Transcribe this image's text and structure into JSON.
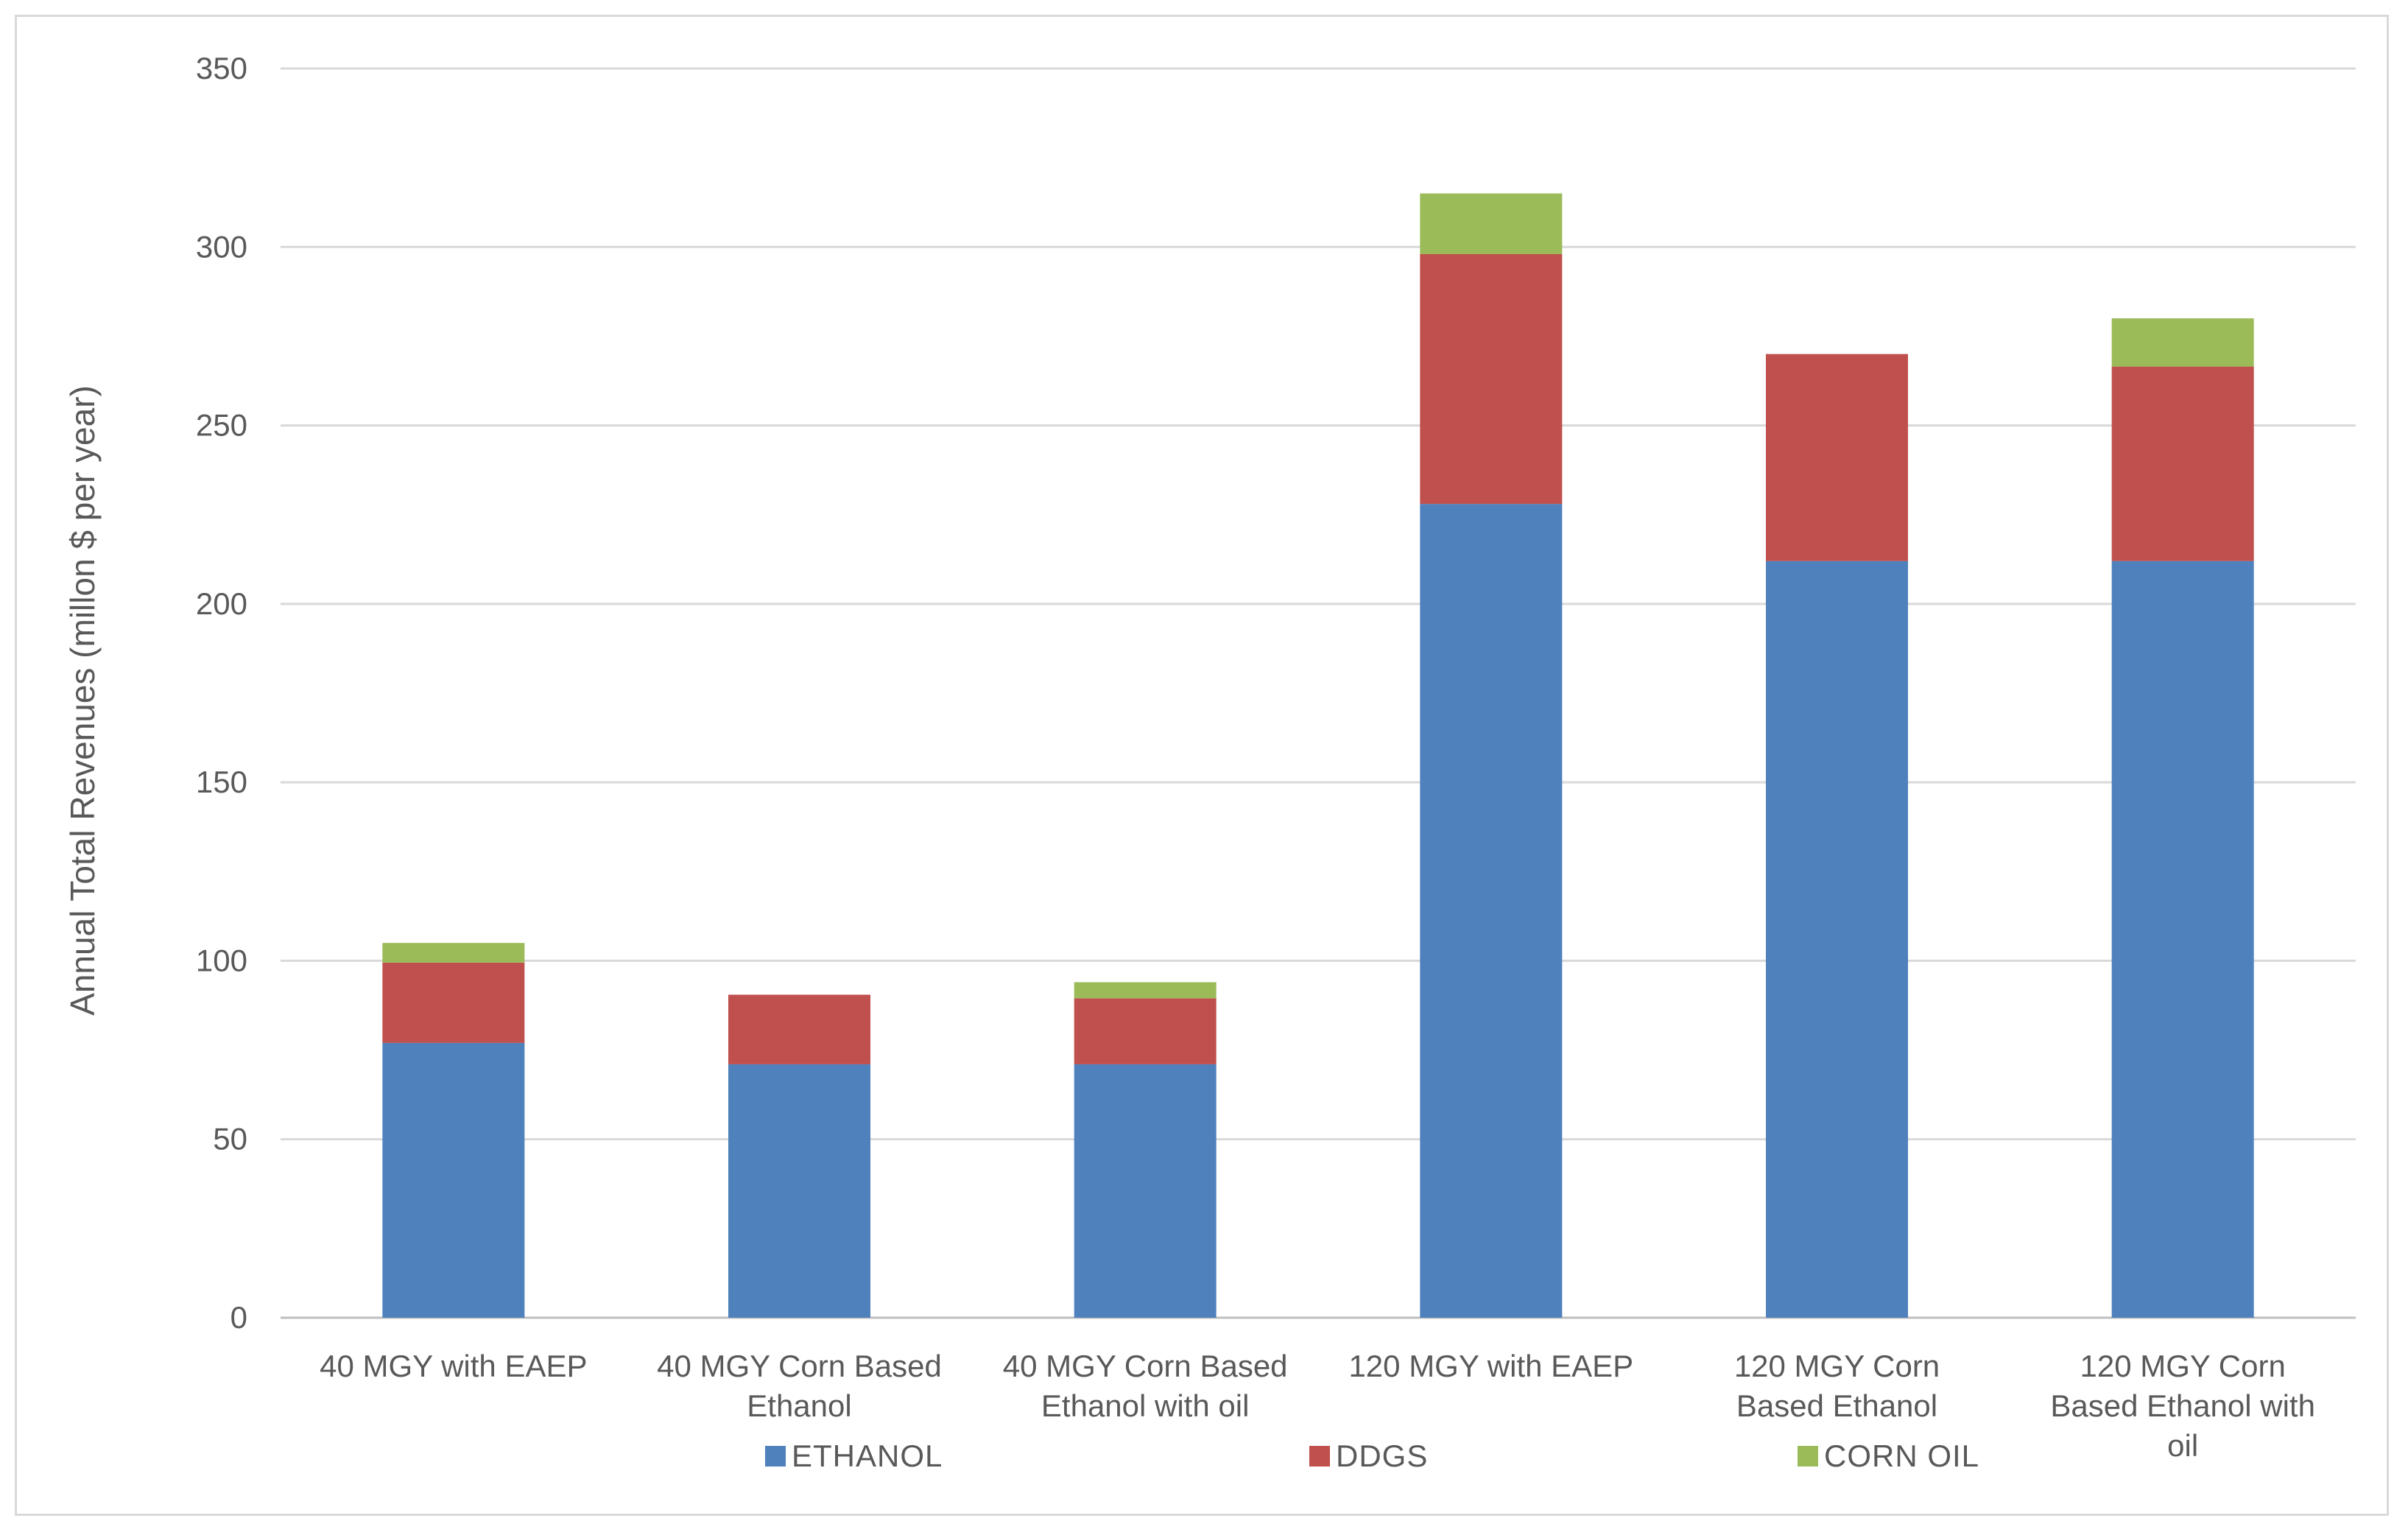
{
  "chart_data": {
    "type": "bar",
    "stacked": true,
    "title": "",
    "xlabel": "",
    "ylabel": "Annual Total Revenues (millon $ per year)",
    "ylim": [
      0,
      350
    ],
    "yticks": [
      0,
      50,
      100,
      150,
      200,
      250,
      300,
      350
    ],
    "grid": true,
    "legend_position": "bottom",
    "categories": [
      [
        "40 MGY with EAEP"
      ],
      [
        "40 MGY Corn Based",
        "Ethanol"
      ],
      [
        "40 MGY Corn Based",
        "Ethanol with oil"
      ],
      [
        "120 MGY with EAEP"
      ],
      [
        "120 MGY Corn",
        "Based Ethanol"
      ],
      [
        "120 MGY Corn",
        "Based Ethanol with",
        "oil"
      ]
    ],
    "series": [
      {
        "name": "ETHANOL",
        "color": "#4f81bd",
        "values": [
          77,
          71,
          71,
          228,
          212,
          212
        ]
      },
      {
        "name": "DDGS",
        "color": "#c0504d",
        "values": [
          22.5,
          19.5,
          18.5,
          70,
          58,
          54.5
        ]
      },
      {
        "name": "CORN OIL",
        "color": "#9bbb59",
        "values": [
          5.5,
          0,
          4.5,
          17,
          0,
          13.5
        ]
      }
    ]
  }
}
